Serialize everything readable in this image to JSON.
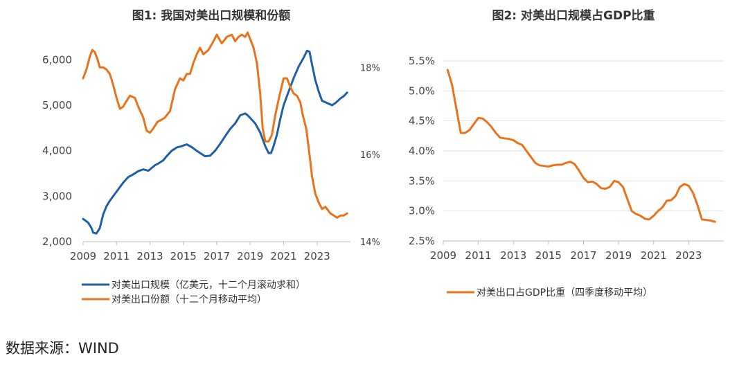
{
  "source_note": "数据来源：WIND",
  "chart_data": [
    {
      "type": "line",
      "title": "图1: 我国对美出口规模和份额",
      "x_ticks": [
        "2009",
        "2011",
        "2013",
        "2015",
        "2017",
        "2019",
        "2021",
        "2023"
      ],
      "xlim": [
        2009,
        2025
      ],
      "y_left": {
        "lim": [
          2000,
          6600
        ],
        "ticks": [
          2000,
          3000,
          4000,
          5000,
          6000
        ],
        "tick_labels": [
          "2,000",
          "3,000",
          "4,000",
          "5,000",
          "6,000"
        ]
      },
      "y_right": {
        "lim": [
          14,
          18.8
        ],
        "ticks": [
          14,
          16,
          18
        ],
        "tick_labels": [
          "14%",
          "16%",
          "18%"
        ]
      },
      "grid": false,
      "legend_position": "bottom",
      "series": [
        {
          "name": "对美出口规模（亿美元，十二个月滚动求和）",
          "axis": "left",
          "color": "#1f5fa6",
          "x": [
            2009.0,
            2009.3,
            2009.5,
            2009.6,
            2009.8,
            2010.0,
            2010.2,
            2010.4,
            2010.6,
            2010.9,
            2011.1,
            2011.4,
            2011.7,
            2012.0,
            2012.3,
            2012.6,
            2012.9,
            2013.1,
            2013.3,
            2013.5,
            2013.8,
            2014.0,
            2014.3,
            2014.6,
            2014.9,
            2015.2,
            2015.5,
            2015.8,
            2016.0,
            2016.3,
            2016.6,
            2016.9,
            2017.2,
            2017.5,
            2017.8,
            2018.1,
            2018.4,
            2018.7,
            2018.85,
            2019.0,
            2019.3,
            2019.6,
            2019.9,
            2020.1,
            2020.25,
            2020.4,
            2020.6,
            2020.8,
            2021.0,
            2021.3,
            2021.6,
            2021.9,
            2022.2,
            2022.4,
            2022.55,
            2022.7,
            2022.9,
            2023.1,
            2023.3,
            2023.6,
            2023.9,
            2024.1,
            2024.4,
            2024.6,
            2024.8
          ],
          "y": [
            2500,
            2420,
            2300,
            2200,
            2180,
            2300,
            2600,
            2780,
            2900,
            3050,
            3150,
            3300,
            3420,
            3480,
            3550,
            3590,
            3560,
            3620,
            3680,
            3720,
            3790,
            3880,
            4000,
            4070,
            4100,
            4140,
            4080,
            4000,
            3950,
            3880,
            3890,
            4000,
            4150,
            4320,
            4480,
            4600,
            4780,
            4820,
            4780,
            4720,
            4600,
            4400,
            4100,
            3950,
            3950,
            4100,
            4350,
            4700,
            5000,
            5300,
            5600,
            5850,
            6050,
            6200,
            6180,
            5900,
            5550,
            5300,
            5100,
            5050,
            5000,
            5050,
            5150,
            5200,
            5280
          ]
        },
        {
          "name": "对美出口份额（十二个月移动平均）",
          "axis": "right",
          "color": "#e8731c",
          "x": [
            2009.0,
            2009.2,
            2009.4,
            2009.55,
            2009.7,
            2009.85,
            2010.0,
            2010.2,
            2010.4,
            2010.6,
            2010.8,
            2011.0,
            2011.2,
            2011.4,
            2011.55,
            2011.8,
            2012.1,
            2012.3,
            2012.6,
            2012.8,
            2013.0,
            2013.2,
            2013.45,
            2013.7,
            2013.9,
            2014.2,
            2014.5,
            2014.8,
            2015.0,
            2015.2,
            2015.4,
            2015.6,
            2015.8,
            2016.0,
            2016.2,
            2016.5,
            2016.8,
            2017.0,
            2017.3,
            2017.6,
            2017.9,
            2018.1,
            2018.3,
            2018.5,
            2018.7,
            2018.85,
            2019.0,
            2019.2,
            2019.4,
            2019.6,
            2019.75,
            2019.9,
            2020.1,
            2020.3,
            2020.5,
            2020.75,
            2021.0,
            2021.2,
            2021.4,
            2021.6,
            2021.8,
            2022.0,
            2022.15,
            2022.35,
            2022.55,
            2022.7,
            2022.9,
            2023.1,
            2023.3,
            2023.5,
            2023.8,
            2024.0,
            2024.2,
            2024.4,
            2024.6,
            2024.8
          ],
          "y": [
            17.75,
            17.95,
            18.25,
            18.4,
            18.35,
            18.2,
            18.0,
            18.0,
            17.95,
            17.85,
            17.6,
            17.3,
            17.05,
            17.1,
            17.2,
            17.35,
            17.3,
            17.1,
            16.85,
            16.55,
            16.5,
            16.6,
            16.75,
            16.8,
            16.85,
            17.0,
            17.5,
            17.75,
            17.7,
            17.85,
            17.85,
            18.1,
            18.3,
            18.45,
            18.3,
            18.4,
            18.6,
            18.75,
            18.55,
            18.7,
            18.75,
            18.6,
            18.7,
            18.75,
            18.7,
            18.8,
            18.65,
            18.45,
            18.1,
            17.4,
            16.6,
            16.3,
            16.3,
            16.45,
            16.9,
            17.35,
            17.75,
            17.75,
            17.55,
            17.4,
            17.35,
            17.2,
            16.9,
            16.6,
            16.0,
            15.5,
            15.1,
            14.9,
            14.75,
            14.8,
            14.65,
            14.6,
            14.55,
            14.6,
            14.6,
            14.65
          ]
        }
      ]
    },
    {
      "type": "line",
      "title": "图2: 对美出口规模占GDP比重",
      "x_ticks": [
        "2009",
        "2011",
        "2013",
        "2015",
        "2017",
        "2019",
        "2021",
        "2023"
      ],
      "xlim": [
        2009,
        2025
      ],
      "y": {
        "lim": [
          2.5,
          5.5
        ],
        "ticks": [
          2.5,
          3.0,
          3.5,
          4.0,
          4.5,
          5.0,
          5.5
        ],
        "tick_labels": [
          "2.5%",
          "3.0%",
          "3.5%",
          "4.0%",
          "4.5%",
          "5.0%",
          "5.5%"
        ]
      },
      "grid": true,
      "legend_position": "bottom",
      "series": [
        {
          "name": "对美出口占GDP比重（四季度移动平均）",
          "color": "#e8731c",
          "x": [
            2009.25,
            2009.5,
            2009.75,
            2010.0,
            2010.25,
            2010.5,
            2010.75,
            2011.0,
            2011.25,
            2011.5,
            2011.75,
            2012.0,
            2012.25,
            2012.5,
            2012.75,
            2013.0,
            2013.25,
            2013.5,
            2013.75,
            2014.0,
            2014.25,
            2014.5,
            2014.75,
            2015.0,
            2015.25,
            2015.5,
            2015.75,
            2016.0,
            2016.25,
            2016.5,
            2016.75,
            2017.0,
            2017.25,
            2017.5,
            2017.75,
            2018.0,
            2018.25,
            2018.5,
            2018.75,
            2019.0,
            2019.25,
            2019.5,
            2019.75,
            2020.0,
            2020.25,
            2020.5,
            2020.75,
            2021.0,
            2021.25,
            2021.5,
            2021.75,
            2022.0,
            2022.25,
            2022.5,
            2022.75,
            2023.0,
            2023.25,
            2023.5,
            2023.75,
            2024.0,
            2024.25,
            2024.5
          ],
          "y": [
            5.35,
            5.1,
            4.7,
            4.3,
            4.3,
            4.35,
            4.45,
            4.55,
            4.54,
            4.48,
            4.4,
            4.3,
            4.22,
            4.21,
            4.2,
            4.18,
            4.13,
            4.1,
            4.0,
            3.9,
            3.8,
            3.76,
            3.75,
            3.74,
            3.76,
            3.77,
            3.77,
            3.8,
            3.82,
            3.78,
            3.67,
            3.55,
            3.48,
            3.49,
            3.45,
            3.38,
            3.37,
            3.4,
            3.5,
            3.48,
            3.4,
            3.2,
            3.0,
            2.95,
            2.92,
            2.87,
            2.86,
            2.92,
            3.0,
            3.06,
            3.17,
            3.18,
            3.25,
            3.4,
            3.45,
            3.42,
            3.3,
            3.1,
            2.86,
            2.85,
            2.84,
            2.82
          ]
        }
      ]
    }
  ]
}
